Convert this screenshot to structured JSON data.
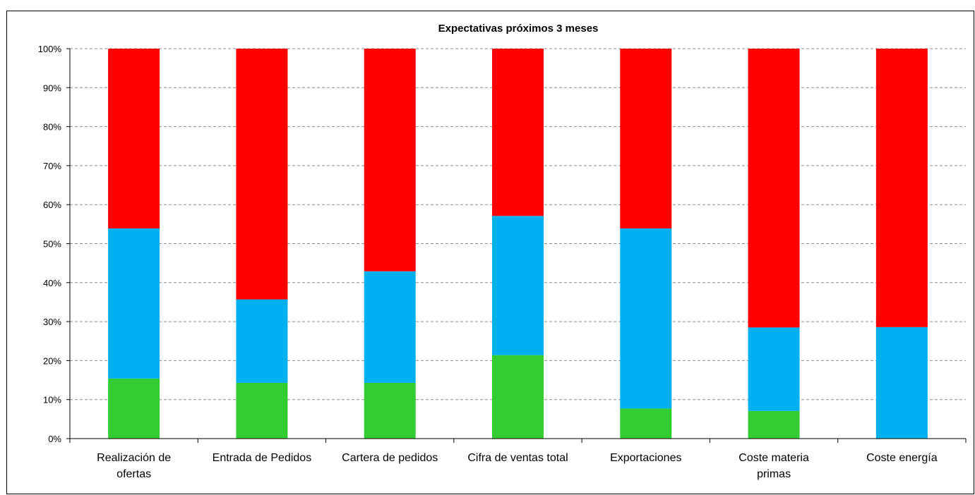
{
  "chart_data": {
    "type": "bar",
    "stacked": true,
    "title": "Expectativas próximos 3 meses",
    "categories": [
      [
        "Realización de",
        "ofertas"
      ],
      [
        "Entrada de Pedidos"
      ],
      [
        "Cartera de pedidos"
      ],
      [
        "Cifra de ventas total"
      ],
      [
        "Exportaciones"
      ],
      [
        "Coste materia",
        "primas"
      ],
      [
        "Coste energía"
      ]
    ],
    "series": [
      {
        "color": "#33cc33",
        "values": [
          15.4,
          14.3,
          14.3,
          21.4,
          7.7,
          7.1,
          0.0
        ]
      },
      {
        "color": "#00b0f0",
        "values": [
          38.5,
          21.4,
          28.6,
          35.7,
          46.2,
          21.4,
          28.6
        ]
      },
      {
        "color": "#ff0000",
        "values": [
          46.1,
          64.3,
          57.1,
          42.9,
          46.1,
          71.5,
          71.4
        ]
      }
    ],
    "ylim": [
      0,
      100
    ],
    "yticks": [
      "0%",
      "10%",
      "20%",
      "30%",
      "40%",
      "50%",
      "60%",
      "70%",
      "80%",
      "90%",
      "100%"
    ],
    "grid": true,
    "legend": "none"
  }
}
